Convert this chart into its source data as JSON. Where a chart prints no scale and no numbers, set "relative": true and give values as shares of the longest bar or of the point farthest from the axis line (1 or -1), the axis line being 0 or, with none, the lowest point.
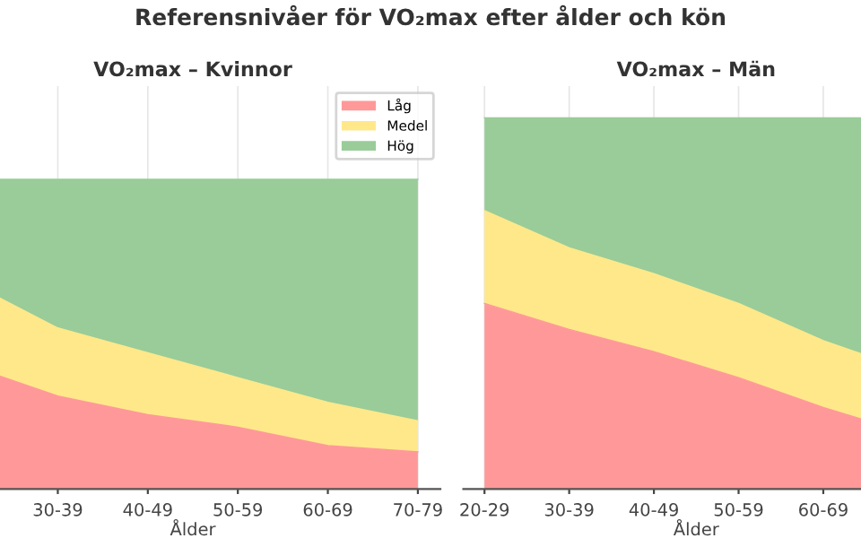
{
  "chart_data": [
    {
      "type": "area",
      "title": "VO₂max – Kvinnor",
      "xlabel": "Ålder",
      "annotations": [
        "Referensnivåer för VO₂max efter ålder och kön"
      ],
      "relative": true,
      "stacked": true,
      "grid": "x",
      "legend": "top right",
      "categories": [
        null,
        "30-39",
        "40-49",
        "50-59",
        "60-69",
        "70-79"
      ],
      "series": [
        {
          "name": "Låg",
          "color": "#ff9999",
          "values": [
            0.4,
            0.3,
            0.24,
            0.2,
            0.14,
            0.12
          ]
        },
        {
          "name": "Medel",
          "color": "#ffe88a",
          "values": [
            0.27,
            0.22,
            0.2,
            0.16,
            0.14,
            0.1
          ]
        },
        {
          "name": "Hög",
          "color": "#99cc99",
          "values": [
            0.33,
            0.48,
            0.56,
            0.64,
            0.72,
            0.78
          ]
        }
      ]
    },
    {
      "type": "area",
      "title": "VO₂max – Män",
      "xlabel": "Ålder",
      "relative": true,
      "stacked": true,
      "grid": "x",
      "categories": [
        "20-29",
        "30-39",
        "40-49",
        "50-59",
        "60-69",
        null
      ],
      "series": [
        {
          "color": "#ff9999",
          "values": [
            0.5,
            0.43,
            0.37,
            0.3,
            0.22,
            0.15
          ]
        },
        {
          "color": "#ffe88a",
          "values": [
            0.25,
            0.22,
            0.21,
            0.2,
            0.18,
            0.17
          ]
        },
        {
          "color": "#99cc99",
          "values": [
            0.25,
            0.35,
            0.42,
            0.5,
            0.6,
            0.68
          ]
        }
      ]
    }
  ]
}
